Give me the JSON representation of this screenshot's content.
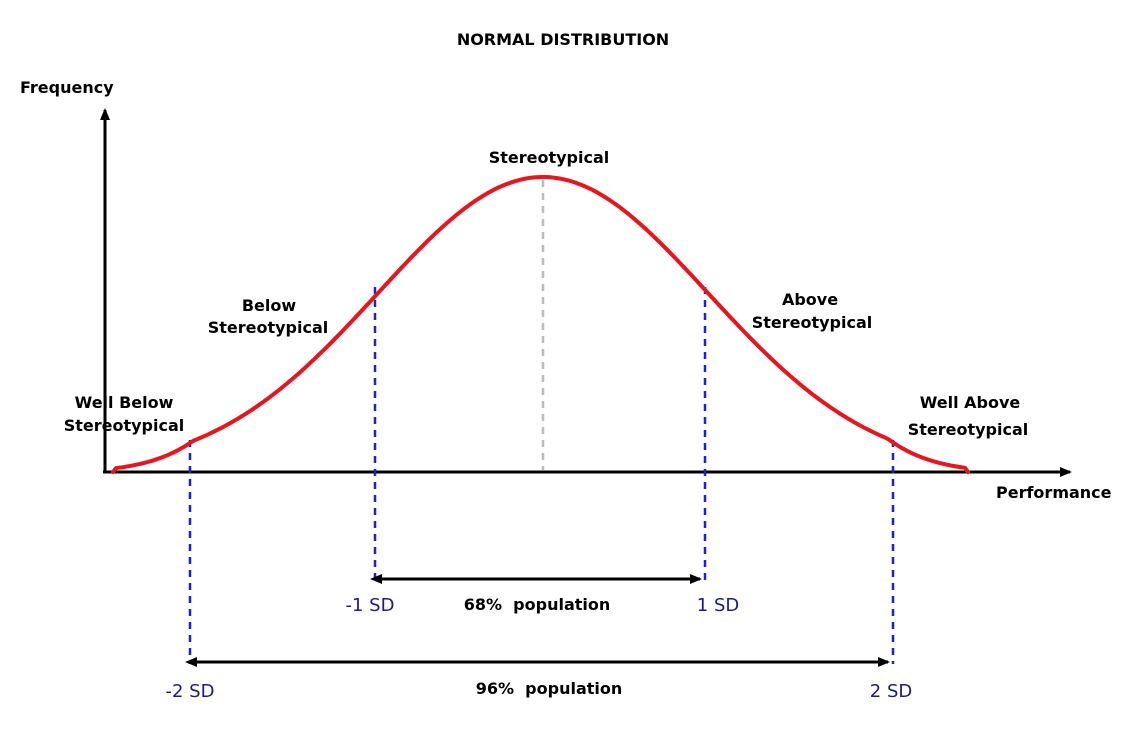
{
  "title": "NORMAL DISTRIBUTION",
  "axes": {
    "y_label": "Frequency",
    "x_label": "Performance"
  },
  "regions": {
    "center": "Stereotypical",
    "below": [
      "Below",
      "Stereotypical"
    ],
    "above": [
      "Above",
      "Stereotypical"
    ],
    "well_below": [
      "Well Below",
      "Stereotypical"
    ],
    "well_above": [
      "Well Above",
      "Stereotypical"
    ]
  },
  "sd_labels": {
    "neg1": "-1 SD",
    "pos1": "1 SD",
    "neg2": "-2 SD",
    "pos2": "2 SD"
  },
  "ranges": {
    "one_sd": "68%  population",
    "two_sd": "96%  population"
  },
  "colors": {
    "curve": "#e8141e",
    "sd_lines": "#1f1fd6",
    "mean_line": "#bbbbbb",
    "sd_text": "#1a1a8c"
  }
}
